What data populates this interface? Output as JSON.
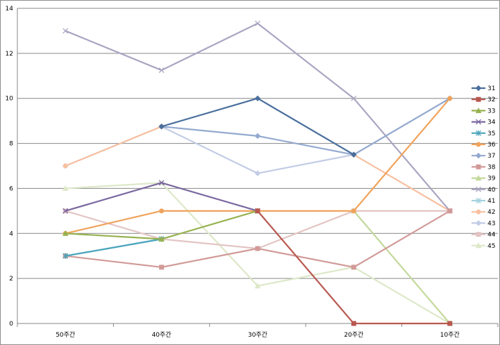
{
  "chart_data": {
    "type": "line",
    "title": "",
    "xlabel": "",
    "ylabel": "",
    "categories": [
      "50주간",
      "40주간",
      "30주간",
      "20주간",
      "10주간"
    ],
    "ylim": [
      0,
      14
    ],
    "yticks": [
      0,
      2,
      4,
      6,
      8,
      10,
      12,
      14
    ],
    "grid": true,
    "legend_position": "right",
    "series": [
      {
        "name": "31",
        "color": "#4a6f9e",
        "marker": "diamond",
        "values": [
          null,
          8.75,
          10,
          7.5,
          null
        ]
      },
      {
        "name": "32",
        "color": "#b8574f",
        "marker": "square",
        "values": [
          null,
          null,
          5,
          0,
          0
        ]
      },
      {
        "name": "33",
        "color": "#96b24f",
        "marker": "triangle",
        "values": [
          4,
          3.75,
          5,
          null,
          null
        ]
      },
      {
        "name": "34",
        "color": "#7a67a0",
        "marker": "x",
        "values": [
          5,
          6.25,
          5,
          null,
          null
        ]
      },
      {
        "name": "35",
        "color": "#4aa5bb",
        "marker": "star",
        "values": [
          3,
          3.75,
          null,
          null,
          null
        ]
      },
      {
        "name": "36",
        "color": "#f0a35a",
        "marker": "circle",
        "values": [
          4,
          5,
          5,
          5,
          10
        ]
      },
      {
        "name": "37",
        "color": "#93a9cf",
        "marker": "diamond",
        "values": [
          null,
          8.75,
          8.33,
          7.5,
          10
        ]
      },
      {
        "name": "38",
        "color": "#d19a98",
        "marker": "square",
        "values": [
          3,
          2.5,
          3.33,
          2.5,
          5
        ]
      },
      {
        "name": "39",
        "color": "#c3d89b",
        "marker": "triangle",
        "values": [
          null,
          null,
          null,
          5,
          0
        ]
      },
      {
        "name": "40",
        "color": "#aba4c2",
        "marker": "x",
        "values": [
          13,
          11.25,
          13.33,
          10,
          5
        ]
      },
      {
        "name": "41",
        "color": "#a4d2df",
        "marker": "star",
        "values": [
          3,
          3.75,
          null,
          null,
          null
        ]
      },
      {
        "name": "42",
        "color": "#f8c0a0",
        "marker": "circle",
        "values": [
          7,
          8.75,
          null,
          7.5,
          5
        ]
      },
      {
        "name": "43",
        "color": "#c2cce6",
        "marker": "diamond",
        "values": [
          7,
          8.75,
          6.67,
          7.5,
          10
        ]
      },
      {
        "name": "44",
        "color": "#e3c5c4",
        "marker": "square",
        "values": [
          5,
          3.75,
          3.33,
          5,
          5
        ]
      },
      {
        "name": "45",
        "color": "#dde8c8",
        "marker": "triangle",
        "values": [
          6,
          6.25,
          1.67,
          2.5,
          0
        ]
      }
    ]
  }
}
